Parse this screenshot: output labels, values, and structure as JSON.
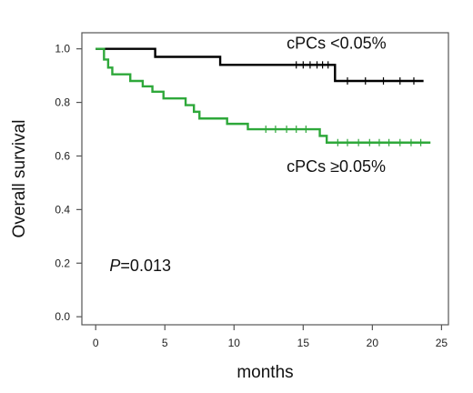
{
  "chart_data": {
    "type": "line",
    "subtype": "kaplan-meier",
    "xlabel": "months",
    "ylabel": "Overall survival",
    "xlim": [
      -1,
      25.5
    ],
    "ylim": [
      -0.03,
      1.06
    ],
    "xticks": [
      0,
      5,
      10,
      15,
      20,
      25
    ],
    "yticks": [
      0.0,
      0.2,
      0.4,
      0.6,
      0.8,
      1.0
    ],
    "xtick_labels": [
      "0",
      "5",
      "10",
      "15",
      "20",
      "25"
    ],
    "ytick_labels": [
      "0.0",
      "0.2",
      "0.4",
      "0.6",
      "0.8",
      "1.0"
    ],
    "grid": false,
    "annotation": {
      "p_symbol": "P",
      "p_text": "=0.013",
      "x": 1,
      "y": 0.17
    },
    "series": [
      {
        "name": "cPCs <0.05%",
        "color": "#000000",
        "label_x": 13.8,
        "label_y": 1.0,
        "steps": [
          [
            0,
            1.0
          ],
          [
            4.3,
            0.97
          ],
          [
            9.0,
            0.94
          ],
          [
            17.3,
            0.88
          ],
          [
            23.7,
            0.88
          ]
        ],
        "censors": [
          14.5,
          15.0,
          15.5,
          16.0,
          16.4,
          16.8,
          18.2,
          19.5,
          20.8,
          22.0,
          23.0
        ]
      },
      {
        "name": "cPCs ≥0.05%",
        "color": "#2ea83a",
        "label_x": 13.8,
        "label_y": 0.54,
        "steps": [
          [
            0,
            1.0
          ],
          [
            0.6,
            0.96
          ],
          [
            0.9,
            0.93
          ],
          [
            1.2,
            0.905
          ],
          [
            2.5,
            0.88
          ],
          [
            3.4,
            0.86
          ],
          [
            4.1,
            0.84
          ],
          [
            4.9,
            0.815
          ],
          [
            6.5,
            0.79
          ],
          [
            7.1,
            0.765
          ],
          [
            7.5,
            0.74
          ],
          [
            9.5,
            0.72
          ],
          [
            11.0,
            0.7
          ],
          [
            16.2,
            0.675
          ],
          [
            16.7,
            0.65
          ],
          [
            24.2,
            0.65
          ]
        ],
        "censors": [
          12.3,
          13.0,
          13.8,
          14.5,
          15.2,
          17.5,
          18.2,
          19.0,
          19.8,
          20.5,
          21.2,
          22.0,
          22.8,
          23.5
        ]
      }
    ]
  }
}
